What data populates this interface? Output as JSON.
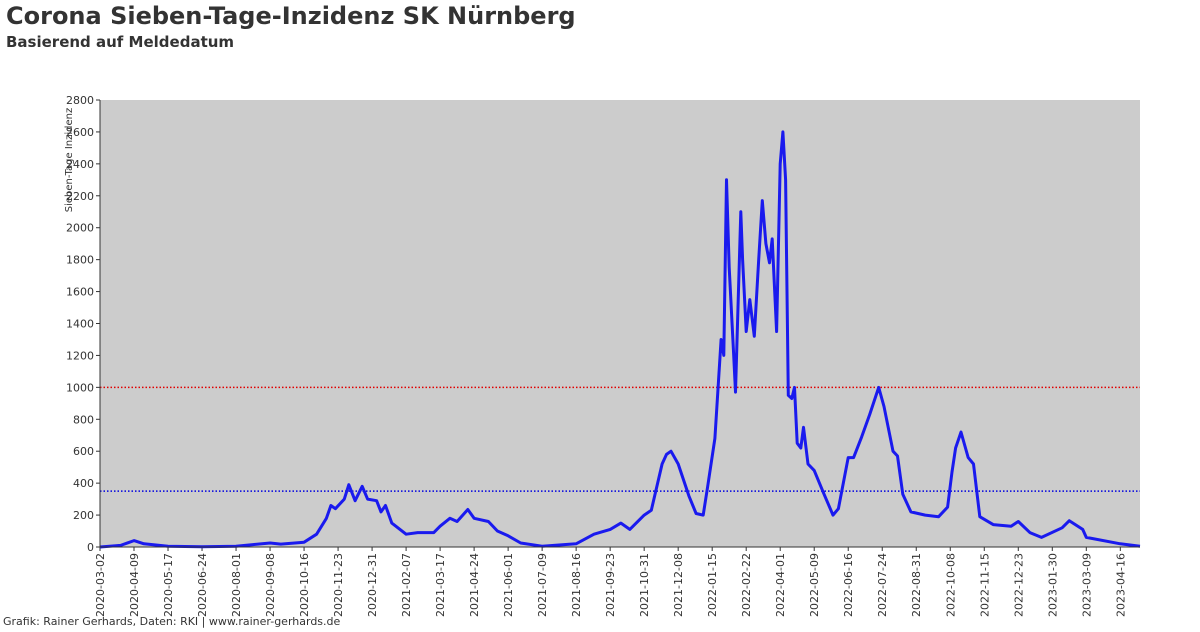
{
  "chart_data": {
    "type": "line",
    "title": "Corona Sieben-Tage-Inzidenz SK Nürnberg",
    "subtitle": "Basierend auf Meldedatum",
    "y_label": "Sieben-Tage Inzidenz",
    "footer": "Grafik: Rainer Gerhards, Daten: RKI | www.rainer-gerhards.de",
    "xlim": [
      "2020-03-02",
      "2023-05-08"
    ],
    "xticks": [
      "2020-03-02",
      "2020-04-09",
      "2020-05-17",
      "2020-06-24",
      "2020-08-01",
      "2020-09-08",
      "2020-10-16",
      "2020-11-23",
      "2020-12-31",
      "2021-02-07",
      "2021-03-17",
      "2021-04-24",
      "2021-06-01",
      "2021-07-09",
      "2021-08-16",
      "2021-09-23",
      "2021-10-31",
      "2021-12-08",
      "2022-01-15",
      "2022-02-22",
      "2022-04-01",
      "2022-05-09",
      "2022-06-16",
      "2022-07-24",
      "2022-08-31",
      "2022-10-08",
      "2022-11-15",
      "2022-12-23",
      "2023-01-30",
      "2023-03-09",
      "2023-04-16"
    ],
    "ylim": [
      0,
      2800
    ],
    "yticks": [
      0,
      200,
      400,
      600,
      800,
      1000,
      1200,
      1400,
      1600,
      1800,
      2000,
      2200,
      2400,
      2600,
      2800
    ],
    "hlines": [
      {
        "value": 1000,
        "color": "#e00000"
      },
      {
        "value": 350,
        "color": "#0000e0"
      }
    ],
    "plot_background": "#cccccc",
    "series": [
      {
        "color": "#1a1aee",
        "x": [
          "2020-03-02",
          "2020-03-25",
          "2020-04-09",
          "2020-04-20",
          "2020-05-17",
          "2020-06-24",
          "2020-08-01",
          "2020-08-20",
          "2020-09-08",
          "2020-09-20",
          "2020-10-16",
          "2020-10-30",
          "2020-11-10",
          "2020-11-15",
          "2020-11-20",
          "2020-11-30",
          "2020-12-05",
          "2020-12-12",
          "2020-12-20",
          "2020-12-26",
          "2021-01-05",
          "2021-01-10",
          "2021-01-15",
          "2021-01-22",
          "2021-02-07",
          "2021-02-20",
          "2021-03-10",
          "2021-03-17",
          "2021-03-28",
          "2021-04-05",
          "2021-04-17",
          "2021-04-24",
          "2021-05-10",
          "2021-05-20",
          "2021-06-01",
          "2021-06-15",
          "2021-07-09",
          "2021-08-16",
          "2021-09-05",
          "2021-09-23",
          "2021-10-05",
          "2021-10-15",
          "2021-10-31",
          "2021-11-08",
          "2021-11-20",
          "2021-11-25",
          "2021-11-30",
          "2021-12-08",
          "2021-12-20",
          "2021-12-28",
          "2022-01-05",
          "2022-01-10",
          "2022-01-18",
          "2022-01-25",
          "2022-01-28",
          "2022-01-31",
          "2022-02-03",
          "2022-02-08",
          "2022-02-10",
          "2022-02-16",
          "2022-02-18",
          "2022-02-22",
          "2022-02-26",
          "2022-03-03",
          "2022-03-08",
          "2022-03-12",
          "2022-03-16",
          "2022-03-20",
          "2022-03-23",
          "2022-03-28",
          "2022-04-01",
          "2022-04-04",
          "2022-04-07",
          "2022-04-10",
          "2022-04-14",
          "2022-04-17",
          "2022-04-20",
          "2022-04-24",
          "2022-04-27",
          "2022-05-02",
          "2022-05-09",
          "2022-05-20",
          "2022-05-30",
          "2022-06-05",
          "2022-06-16",
          "2022-06-22",
          "2022-07-01",
          "2022-07-10",
          "2022-07-20",
          "2022-07-26",
          "2022-08-05",
          "2022-08-10",
          "2022-08-16",
          "2022-08-25",
          "2022-09-10",
          "2022-09-25",
          "2022-10-05",
          "2022-10-10",
          "2022-10-14",
          "2022-10-20",
          "2022-10-28",
          "2022-11-03",
          "2022-11-10",
          "2022-11-25",
          "2022-12-15",
          "2022-12-23",
          "2023-01-05",
          "2023-01-18",
          "2023-02-10",
          "2023-02-18",
          "2023-03-05",
          "2023-03-09",
          "2023-04-16",
          "2023-05-08"
        ],
        "values": [
          0,
          10,
          40,
          20,
          5,
          2,
          5,
          15,
          25,
          18,
          30,
          80,
          180,
          260,
          240,
          300,
          390,
          290,
          380,
          300,
          290,
          220,
          260,
          150,
          80,
          90,
          90,
          130,
          180,
          160,
          235,
          180,
          160,
          100,
          70,
          25,
          5,
          20,
          80,
          110,
          150,
          110,
          200,
          230,
          520,
          580,
          600,
          520,
          320,
          210,
          200,
          380,
          680,
          1300,
          1200,
          2300,
          1750,
          1200,
          970,
          2100,
          1800,
          1350,
          1550,
          1320,
          1800,
          2170,
          1900,
          1780,
          1930,
          1350,
          2400,
          2600,
          2300,
          950,
          930,
          1000,
          650,
          620,
          750,
          520,
          480,
          330,
          200,
          240,
          560,
          560,
          690,
          830,
          1000,
          880,
          600,
          570,
          330,
          220,
          200,
          190,
          250,
          470,
          620,
          720,
          560,
          520,
          190,
          140,
          130,
          160,
          90,
          60,
          120,
          165,
          110,
          60,
          20,
          5
        ]
      }
    ]
  }
}
